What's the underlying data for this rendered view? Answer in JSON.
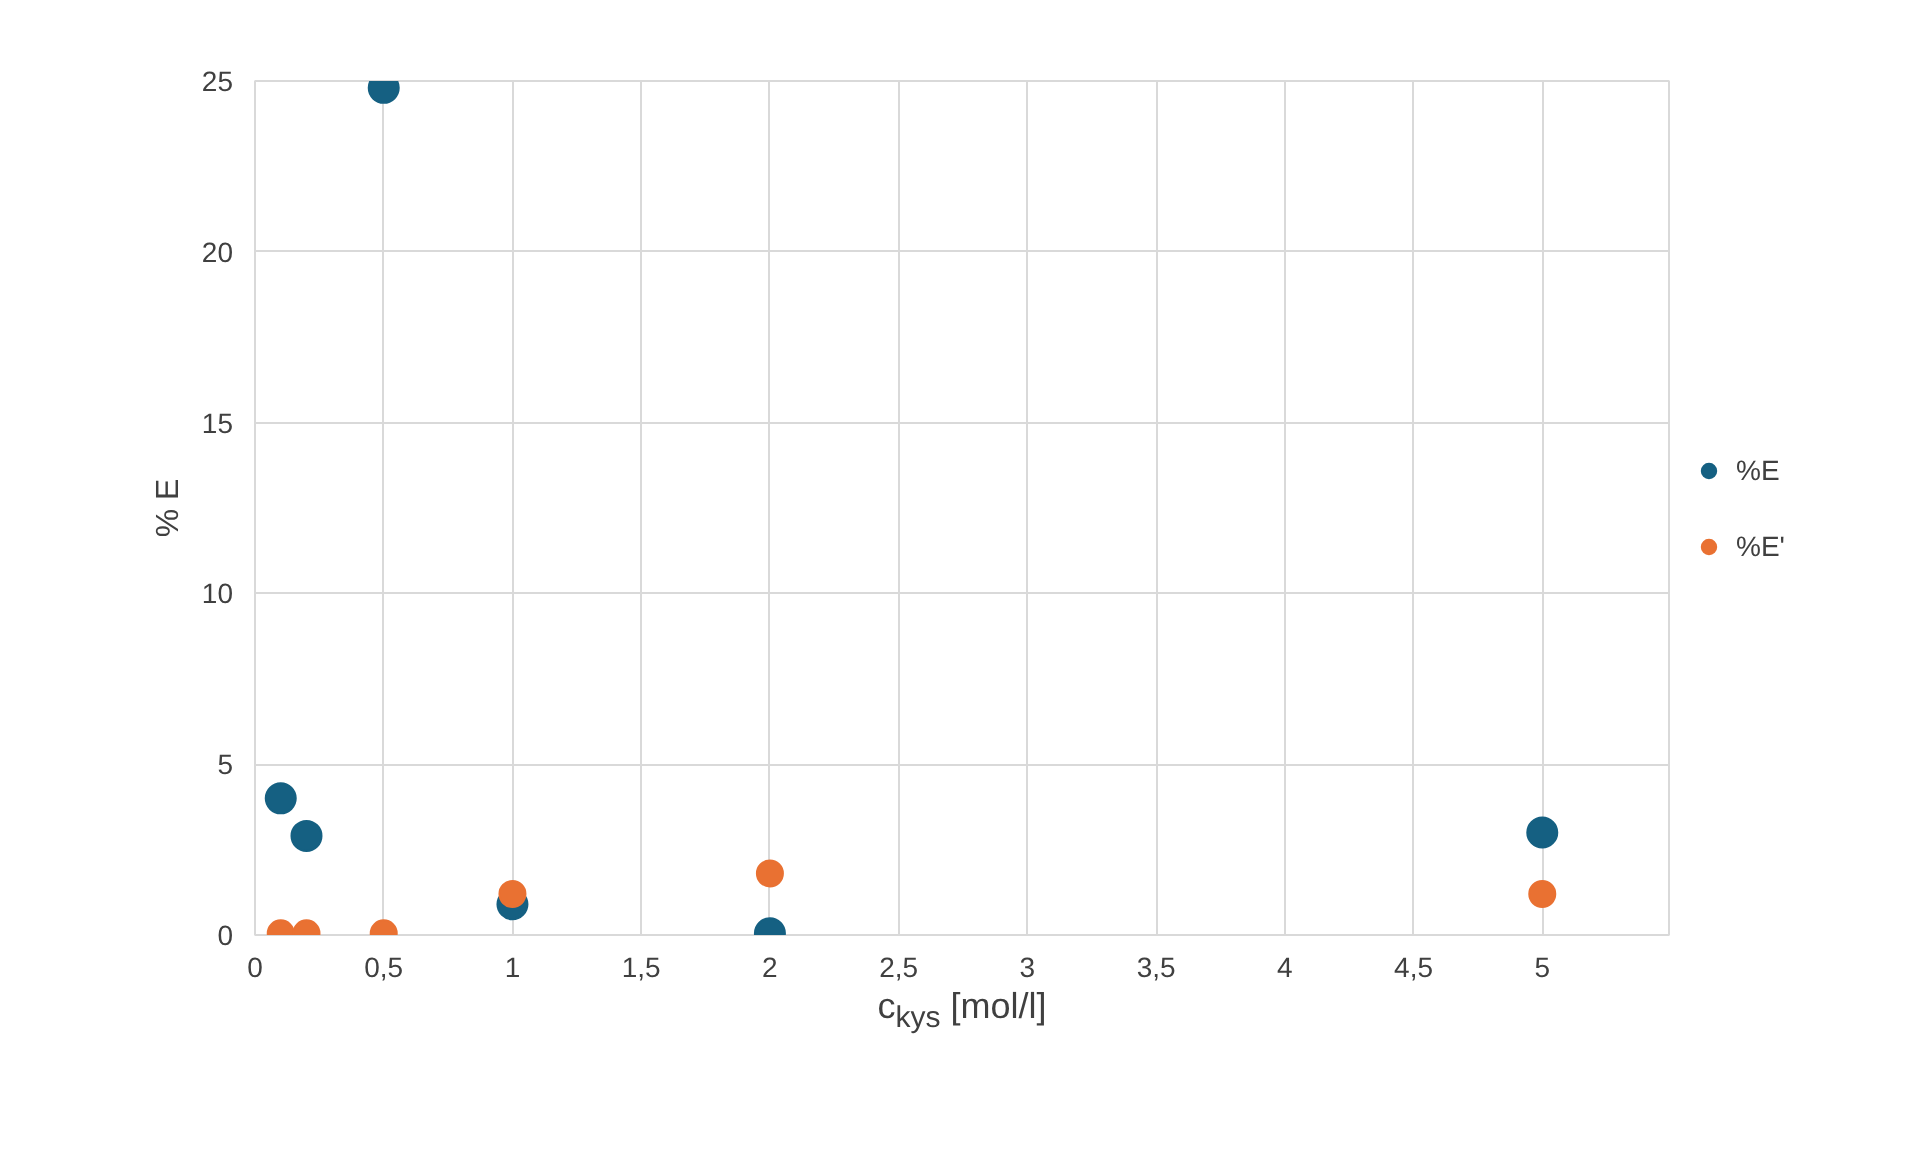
{
  "chart_data": {
    "type": "scatter",
    "xlabel": "c$_{kys}$ [mol/l]",
    "ylabel": "% E",
    "xlim": [
      0,
      5.5
    ],
    "xticks": [
      0,
      {
        "value": 0.5,
        "label": "0,5"
      },
      1,
      {
        "value": 1.5,
        "label": "1,5"
      },
      2,
      {
        "value": 2.5,
        "label": "2,5"
      },
      3,
      {
        "value": 3.5,
        "label": "3,5"
      },
      4,
      {
        "value": 4.5,
        "label": "4,5"
      },
      5
    ],
    "ylim": [
      0,
      25
    ],
    "yticks": [
      0,
      5,
      10,
      15,
      20,
      25
    ],
    "grid": true,
    "legend": "right",
    "marker": "circle",
    "x": [
      0.1,
      0.2,
      0.5,
      1,
      2,
      5
    ],
    "series": [
      {
        "name": "%E",
        "color": "#156082",
        "values": [
          4.0,
          2.9,
          24.8,
          0.9,
          0.05,
          3.0
        ]
      },
      {
        "name": "%E'",
        "color": "#e97132",
        "values": [
          0.05,
          0.05,
          0.05,
          1.2,
          1.8,
          1.2
        ]
      }
    ]
  }
}
